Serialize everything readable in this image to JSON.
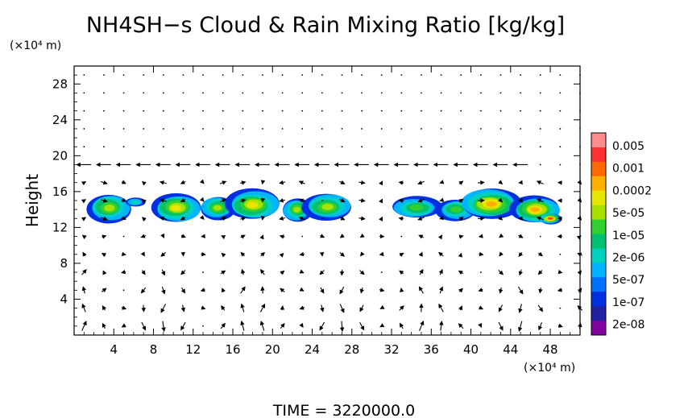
{
  "chart_data": {
    "type": "heatmap",
    "title": "NH4SH−s Cloud & Rain Mixing Ratio [kg/kg]",
    "ylabel": "Height",
    "y_unit": "(×10⁴ m)",
    "x_unit": "(×10⁴ m)",
    "footer": "TIME = 3220000.0",
    "xlim": [
      0,
      51
    ],
    "ylim": [
      0,
      30
    ],
    "x_ticks": [
      4,
      8,
      12,
      16,
      20,
      24,
      28,
      32,
      36,
      40,
      44,
      48
    ],
    "y_ticks": [
      4,
      8,
      12,
      16,
      20,
      24,
      28
    ],
    "colorbar": {
      "labels": [
        "0.005",
        "0.001",
        "0.0002",
        "5e-05",
        "1e-05",
        "2e-06",
        "5e-07",
        "1e-07",
        "2e-08"
      ],
      "colors": [
        "#ff8c8c",
        "#ff3030",
        "#ff6a00",
        "#ffb000",
        "#e6e600",
        "#a8e000",
        "#30d030",
        "#00c070",
        "#00d0c0",
        "#00b4ff",
        "#0070ff",
        "#0030e0",
        "#2020a0",
        "#8000a0"
      ]
    },
    "cloud_blobs": [
      {
        "x": 3.5,
        "y": 14.2,
        "w": 4.5,
        "h": 3.2,
        "peak": 0.6
      },
      {
        "x": 6.2,
        "y": 14.8,
        "w": 2.0,
        "h": 1.0,
        "peak": 0.2
      },
      {
        "x": 10.3,
        "y": 14.2,
        "w": 5.0,
        "h": 3.2,
        "peak": 0.72
      },
      {
        "x": 14.5,
        "y": 14.2,
        "w": 3.5,
        "h": 2.6,
        "peak": 0.55
      },
      {
        "x": 18.0,
        "y": 14.5,
        "w": 5.5,
        "h": 3.4,
        "peak": 0.72
      },
      {
        "x": 22.5,
        "y": 14.0,
        "w": 3.0,
        "h": 2.6,
        "peak": 0.62
      },
      {
        "x": 25.5,
        "y": 14.3,
        "w": 5.0,
        "h": 3.0,
        "peak": 0.6
      },
      {
        "x": 34.5,
        "y": 14.2,
        "w": 5.0,
        "h": 2.4,
        "peak": 0.45
      },
      {
        "x": 38.5,
        "y": 14.0,
        "w": 4.0,
        "h": 2.4,
        "peak": 0.5
      },
      {
        "x": 42.0,
        "y": 14.6,
        "w": 6.0,
        "h": 3.4,
        "peak": 0.78
      },
      {
        "x": 46.5,
        "y": 14.0,
        "w": 5.0,
        "h": 3.0,
        "peak": 0.82
      },
      {
        "x": 48.0,
        "y": 13.0,
        "w": 2.2,
        "h": 1.2,
        "peak": 1.0
      }
    ],
    "wind_field": {
      "rows_y": [
        1,
        3,
        5,
        7,
        9,
        11,
        13,
        15,
        17,
        19,
        21,
        23,
        25,
        27,
        29
      ],
      "cols_x": [
        1,
        3,
        5,
        7,
        9,
        11,
        13,
        15,
        17,
        19,
        21,
        23,
        25,
        27,
        29,
        31,
        33,
        35,
        37,
        39,
        41,
        43,
        45,
        47,
        49,
        51
      ],
      "jet_row_y": 19,
      "jet_xlim": [
        1,
        45
      ]
    }
  }
}
